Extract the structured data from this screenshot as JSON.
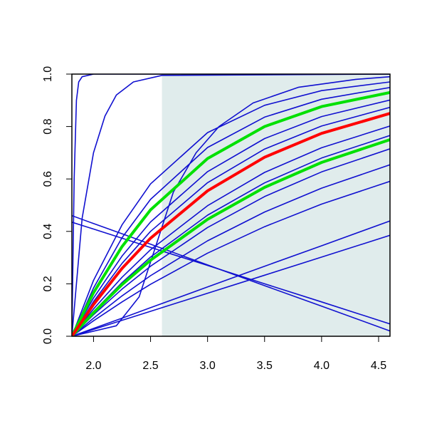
{
  "chart_data": {
    "type": "line",
    "x": [
      1.81,
      2.0,
      2.25,
      2.5,
      3.0,
      3.5,
      4.0,
      4.6
    ],
    "xlim": [
      1.81,
      4.6
    ],
    "ylim": [
      0,
      1
    ],
    "xticks": [
      {
        "value": 2,
        "label": "2.0"
      },
      2.5,
      {
        "value": 3,
        "label": "3.0"
      },
      3.5,
      {
        "value": 4,
        "label": "4.0"
      },
      4.5
    ],
    "yticks": [
      {
        "value": 0,
        "label": "0.0"
      },
      0.2,
      0.4,
      0.6,
      0.8,
      {
        "value": 1,
        "label": "1.0"
      }
    ],
    "shade_x": [
      2.6,
      4.6
    ],
    "shade_color": "#e0ecec",
    "series": [
      {
        "color": "#1010d0",
        "values": [
          0,
          0.213,
          0.425,
          0.581,
          0.777,
          0.881,
          0.937,
          0.97
        ]
      },
      {
        "color": "#1010d0",
        "values": [
          0,
          0.184,
          0.376,
          0.522,
          0.72,
          0.836,
          0.904,
          0.949
        ]
      },
      {
        "color": "#1010d0",
        "values": [
          0,
          0.146,
          0.306,
          0.436,
          0.628,
          0.754,
          0.838,
          0.901
        ]
      },
      {
        "color": "#1010d0",
        "values": [
          0,
          0.132,
          0.278,
          0.4,
          0.586,
          0.714,
          0.802,
          0.873
        ]
      },
      {
        "color": "#1010d0",
        "values": [
          0,
          0.104,
          0.225,
          0.33,
          0.498,
          0.625,
          0.719,
          0.802
        ]
      },
      {
        "color": "#1010d0",
        "values": [
          0,
          0.094,
          0.205,
          0.302,
          0.462,
          0.585,
          0.68,
          0.766
        ]
      },
      {
        "color": "#1010d0",
        "values": [
          0,
          0.082,
          0.18,
          0.267,
          0.415,
          0.533,
          0.627,
          0.715
        ]
      },
      {
        "color": "#1010d0",
        "values": [
          0,
          0.069,
          0.154,
          0.231,
          0.364,
          0.474,
          0.565,
          0.654
        ]
      },
      {
        "color": "#1010d0",
        "values": [
          0,
          0.059,
          0.131,
          0.198,
          0.317,
          0.418,
          0.504,
          0.591
        ]
      },
      {
        "color": "#1010d0",
        "values": [
          0,
          0.03,
          0.069,
          0.109,
          0.188,
          0.267,
          0.345,
          0.44
        ]
      },
      {
        "color": "#1010d0",
        "values": [
          0,
          0.026,
          0.061,
          0.095,
          0.164,
          0.233,
          0.302,
          0.385
        ]
      },
      {
        "color": "#1010d0",
        "values": [
          0.46,
          0.43,
          0.391,
          0.351,
          0.272,
          0.193,
          0.115,
          0.02
        ]
      },
      {
        "color": "#1010d0",
        "values": [
          0.435,
          0.409,
          0.374,
          0.339,
          0.27,
          0.2,
          0.131,
          0.047
        ]
      },
      {
        "color": "#1010d0",
        "x": [
          1.81,
          1.83,
          1.85,
          1.87,
          1.9,
          2.0,
          4.6
        ],
        "values": [
          0,
          0.6,
          0.9,
          0.97,
          0.99,
          1,
          1
        ]
      },
      {
        "color": "#1010d0",
        "x": [
          1.81,
          1.9,
          2.0,
          2.1,
          2.2,
          2.35,
          2.6,
          4.6
        ],
        "values": [
          0,
          0.45,
          0.7,
          0.84,
          0.92,
          0.97,
          0.995,
          1
        ]
      },
      {
        "color": "#1010d0",
        "x": [
          1.81,
          2.2,
          2.4,
          2.55,
          2.7,
          2.9,
          3.1,
          3.4,
          3.8,
          4.3,
          4.6
        ],
        "values": [
          0,
          0.04,
          0.15,
          0.35,
          0.55,
          0.7,
          0.8,
          0.89,
          0.95,
          0.98,
          0.99
        ]
      },
      {
        "color": "#00e000",
        "width": 4,
        "values": [
          0,
          0.166,
          0.342,
          0.482,
          0.678,
          0.8,
          0.876,
          0.93
        ]
      },
      {
        "color": "#00e000",
        "width": 4,
        "values": [
          0,
          0.09,
          0.197,
          0.29,
          0.446,
          0.568,
          0.663,
          0.75
        ]
      },
      {
        "color": "#ff0000",
        "width": 4,
        "values": [
          0,
          0.121,
          0.259,
          0.374,
          0.555,
          0.683,
          0.774,
          0.85
        ]
      }
    ]
  }
}
